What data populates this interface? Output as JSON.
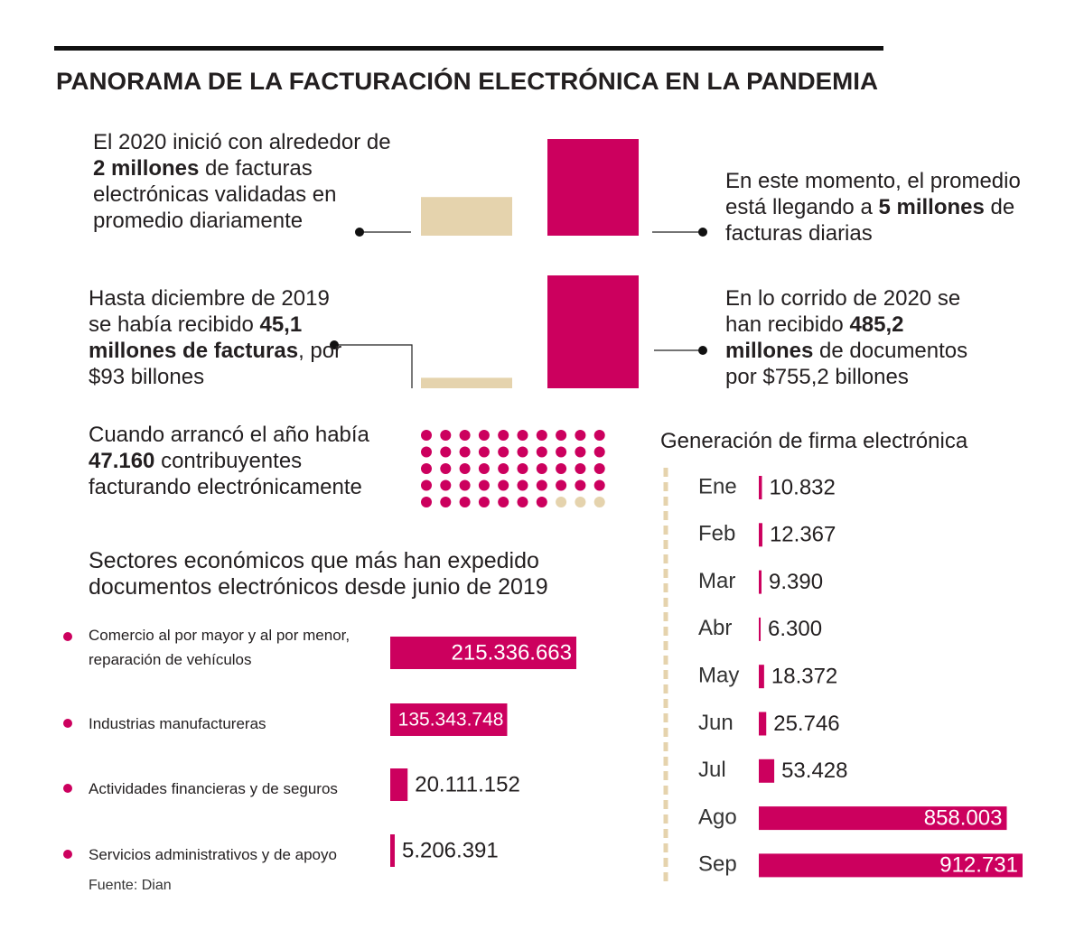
{
  "title": "PANORAMA DE LA FACTURACIÓN ELECTRÓNICA EN LA PANDEMIA",
  "source": "Fuente: Dian",
  "contributors": {
    "before": "Cuando arrancó el año había",
    "value": "47.160",
    "after": "contribuyentes facturando electrónicamente"
  },
  "chart_data": [
    {
      "type": "pair",
      "values": [
        2,
        5
      ],
      "value_labels": [
        "2 millones",
        "5 millones"
      ],
      "colors": [
        "#e5d3ad",
        "#cc005e"
      ],
      "left_text": {
        "before": "El 2020 inició con alrededor de",
        "after": "de facturas electrónicas validadas en promedio diariamente"
      },
      "right_text": {
        "before": "En este momento, el promedio está llegando a",
        "after": "de facturas diarias"
      }
    },
    {
      "type": "pair",
      "values": [
        45.1,
        485.2
      ],
      "value_labels": [
        "45,1 millones de facturas",
        "485,2 millones"
      ],
      "colors": [
        "#e5d3ad",
        "#cc005e"
      ],
      "left_text": {
        "before": "Hasta diciembre de 2019 se había recibido",
        "after": ", por $93 billones"
      },
      "right_text": {
        "before": "En lo corrido de 2020 se han recibido",
        "after": "de documentos por $755,2 billones"
      }
    },
    {
      "type": "hbar",
      "title": "Sectores económicos que más han expedido documentos electrónicos desde junio de 2019",
      "categories": [
        "Comercio al por mayor y al por menor, reparación de vehículos",
        "Industrias manufactureras",
        "Actividades financieras y de seguros",
        "Servicios administrativos y de apoyo"
      ],
      "values": [
        215336663,
        135343748,
        20111152,
        5206391
      ],
      "value_labels": [
        "215.336.663",
        "135.343.748",
        "20.111.152",
        "5.206.391"
      ],
      "color": "#cc005e"
    },
    {
      "type": "hbar",
      "title": "Generación de firma electrónica",
      "categories": [
        "Ene",
        "Feb",
        "Mar",
        "Abr",
        "May",
        "Jun",
        "Jul",
        "Ago",
        "Sep"
      ],
      "values": [
        10832,
        12367,
        9390,
        6300,
        18372,
        25746,
        53428,
        858003,
        912731
      ],
      "value_labels": [
        "10.832",
        "12.367",
        "9.390",
        "6.300",
        "18.372",
        "25.746",
        "53.428",
        "858.003",
        "912.731"
      ],
      "color": "#cc005e"
    }
  ]
}
